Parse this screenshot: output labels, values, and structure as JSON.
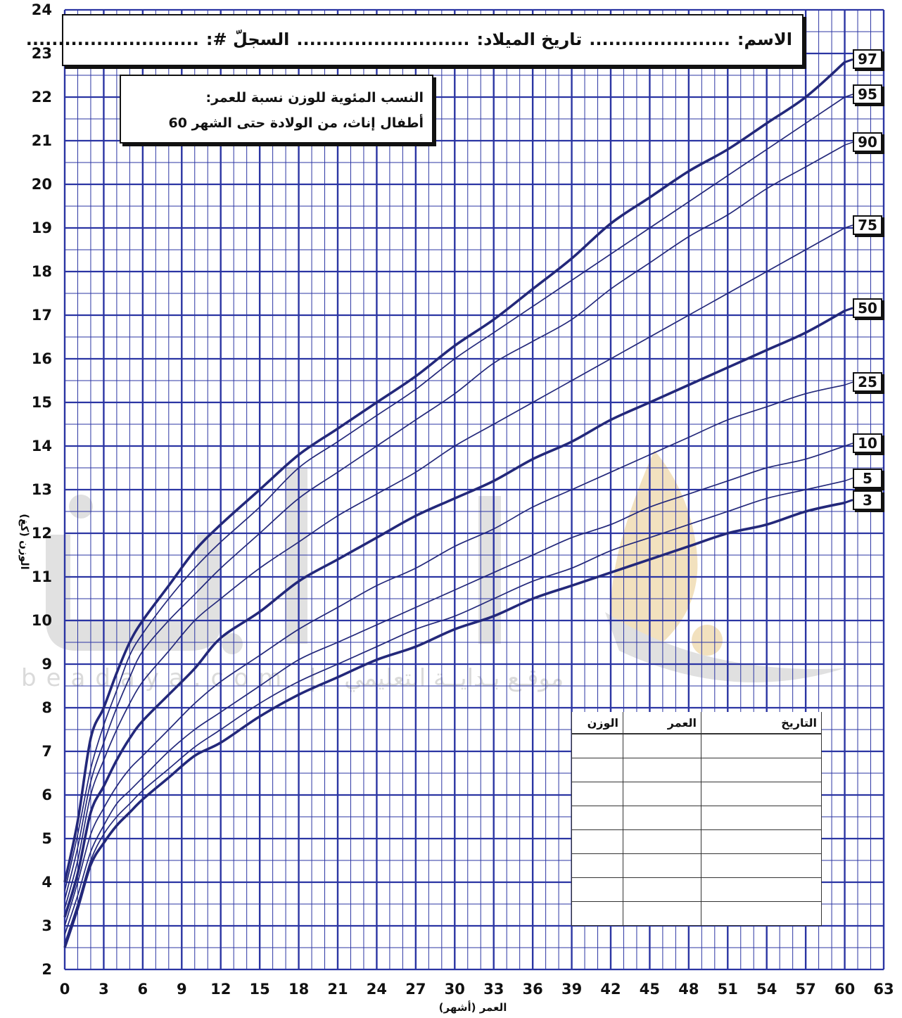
{
  "header": {
    "name_label": "الاسم:",
    "name_dots": "......................",
    "dob_label": "تاريخ الميلاد:",
    "dob_dots": "...........................",
    "record_label": "السجلّ #:",
    "record_dots": "..........................."
  },
  "chart_title": {
    "line1": "النسب المئوية للوزن نسبة للعمر:",
    "line2": "أطفال إناث، من الولادة حتى الشهر 60"
  },
  "watermark": {
    "text": "beadaya.com | موقـع بـدايــة التعليمي"
  },
  "record_table": {
    "headers": [
      "التاريخ",
      "العمر",
      "الوزن"
    ],
    "rows": 8
  },
  "colors": {
    "grid": "#2b35a3",
    "curve": "#23287a",
    "ink": "#111111"
  },
  "chart_data": {
    "type": "line",
    "title": "النسب المئوية للوزن نسبة للعمر: أطفال إناث، من الولادة حتى الشهر 60",
    "xlabel": "العمر (أشهر)",
    "ylabel": "الوزن (كغ)",
    "xlim": [
      0,
      63
    ],
    "ylim": [
      2,
      24
    ],
    "x_ticks": [
      0,
      3,
      6,
      9,
      12,
      15,
      18,
      21,
      24,
      27,
      30,
      33,
      36,
      39,
      42,
      45,
      48,
      51,
      54,
      57,
      60,
      63
    ],
    "y_ticks": [
      2,
      3,
      4,
      5,
      6,
      7,
      8,
      9,
      10,
      11,
      12,
      13,
      14,
      15,
      16,
      17,
      18,
      19,
      20,
      21,
      22,
      23,
      24
    ],
    "x_minor_step": 1,
    "y_minor_step": 0.5,
    "grid": true,
    "x": [
      0,
      1,
      2,
      3,
      4,
      5,
      6,
      8,
      10,
      12,
      15,
      18,
      21,
      24,
      27,
      30,
      33,
      36,
      39,
      42,
      45,
      48,
      51,
      54,
      57,
      60
    ],
    "series": [
      {
        "name": "3",
        "bold": true,
        "values": [
          2.5,
          3.4,
          4.4,
          4.9,
          5.3,
          5.6,
          5.9,
          6.4,
          6.9,
          7.2,
          7.8,
          8.3,
          8.7,
          9.1,
          9.4,
          9.8,
          10.1,
          10.5,
          10.8,
          11.1,
          11.4,
          11.7,
          12.0,
          12.2,
          12.5,
          12.7
        ]
      },
      {
        "name": "5",
        "bold": false,
        "values": [
          2.6,
          3.5,
          4.5,
          5.1,
          5.5,
          5.8,
          6.1,
          6.6,
          7.1,
          7.5,
          8.1,
          8.6,
          9.0,
          9.4,
          9.8,
          10.1,
          10.5,
          10.9,
          11.2,
          11.6,
          11.9,
          12.2,
          12.5,
          12.8,
          13.0,
          13.2
        ]
      },
      {
        "name": "10",
        "bold": false,
        "values": [
          2.8,
          3.7,
          4.7,
          5.3,
          5.8,
          6.1,
          6.4,
          7.0,
          7.5,
          7.9,
          8.5,
          9.1,
          9.5,
          9.9,
          10.3,
          10.7,
          11.1,
          11.5,
          11.9,
          12.2,
          12.6,
          12.9,
          13.2,
          13.5,
          13.7,
          14.0
        ]
      },
      {
        "name": "25",
        "bold": false,
        "values": [
          3.0,
          4.0,
          5.1,
          5.7,
          6.2,
          6.6,
          6.9,
          7.5,
          8.1,
          8.6,
          9.2,
          9.8,
          10.3,
          10.8,
          11.2,
          11.7,
          12.1,
          12.6,
          13.0,
          13.4,
          13.8,
          14.2,
          14.6,
          14.9,
          15.2,
          15.4
        ]
      },
      {
        "name": "50",
        "bold": true,
        "values": [
          3.2,
          4.2,
          5.6,
          6.2,
          6.8,
          7.3,
          7.7,
          8.3,
          8.9,
          9.6,
          10.2,
          10.9,
          11.4,
          11.9,
          12.4,
          12.8,
          13.2,
          13.7,
          14.1,
          14.6,
          15.0,
          15.4,
          15.8,
          16.2,
          16.6,
          17.1
        ]
      },
      {
        "name": "75",
        "bold": false,
        "values": [
          3.4,
          4.5,
          6.0,
          6.8,
          7.5,
          8.1,
          8.6,
          9.3,
          10.0,
          10.5,
          11.2,
          11.8,
          12.4,
          12.9,
          13.4,
          14.0,
          14.5,
          15.0,
          15.5,
          16.0,
          16.5,
          17.0,
          17.5,
          18.0,
          18.5,
          19.0
        ]
      },
      {
        "name": "90",
        "bold": false,
        "values": [
          3.6,
          4.8,
          6.3,
          7.2,
          8.0,
          8.7,
          9.3,
          10.0,
          10.6,
          11.2,
          12.0,
          12.8,
          13.4,
          14.0,
          14.6,
          15.2,
          15.9,
          16.4,
          16.9,
          17.6,
          18.2,
          18.8,
          19.3,
          19.9,
          20.4,
          20.9
        ]
      },
      {
        "name": "95",
        "bold": false,
        "values": [
          3.8,
          5.1,
          6.6,
          7.6,
          8.4,
          9.2,
          9.7,
          10.5,
          11.2,
          11.8,
          12.6,
          13.5,
          14.1,
          14.7,
          15.3,
          16.0,
          16.6,
          17.2,
          17.8,
          18.4,
          19.0,
          19.6,
          20.2,
          20.8,
          21.4,
          22.0
        ]
      },
      {
        "name": "97",
        "bold": true,
        "values": [
          4.0,
          5.4,
          7.3,
          8.0,
          8.8,
          9.5,
          10.0,
          10.8,
          11.6,
          12.2,
          13.0,
          13.8,
          14.4,
          15.0,
          15.6,
          16.3,
          16.9,
          17.6,
          18.3,
          19.1,
          19.7,
          20.3,
          20.8,
          21.4,
          22.0,
          22.8
        ]
      }
    ]
  }
}
